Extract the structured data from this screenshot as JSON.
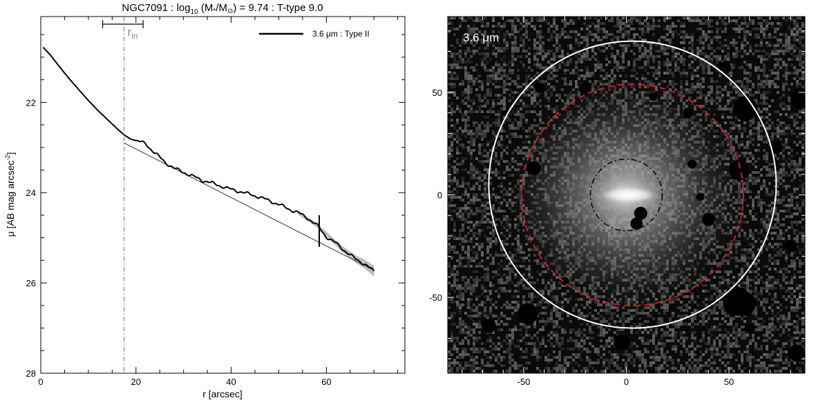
{
  "chart_data": [
    {
      "type": "line",
      "title": {
        "prefix": "NGC7091 : log",
        "log_base": "10",
        "ratio_open": " (M",
        "star_sub": "*",
        "ratio_mid": "/M",
        "sun_sub": "⊙",
        "suffix": ") = 9.74 : T-type 9.0"
      },
      "xlabel": "r [arcsec]",
      "ylabel": {
        "main": "μ [AB mag arcsec",
        "sup": "-2",
        "close": "]"
      },
      "xlim": [
        0,
        76.5
      ],
      "ylim": [
        28,
        20.1
      ],
      "y_inverted": true,
      "xticks": [
        0,
        20,
        40,
        60
      ],
      "xtick_labels": [
        "0",
        "20",
        "40",
        "60"
      ],
      "yticks": [
        22,
        24,
        26,
        28
      ],
      "ytick_labels": [
        "22",
        "24",
        "26",
        "28"
      ],
      "grid": false,
      "legend_position": "top-right",
      "series": [
        {
          "name": "3.6 μm : Type II",
          "color": "#000000",
          "x": [
            0.5,
            2,
            4,
            6,
            8,
            10,
            12,
            14,
            16,
            17.5,
            19,
            20.5,
            22,
            24,
            26,
            28,
            30,
            32,
            34,
            36,
            38,
            40,
            42,
            44,
            46,
            48,
            50,
            52,
            54,
            56,
            58,
            60,
            62,
            64,
            66,
            68,
            70
          ],
          "y": [
            20.78,
            20.95,
            21.22,
            21.48,
            21.72,
            21.96,
            22.18,
            22.38,
            22.58,
            22.72,
            22.82,
            22.86,
            22.92,
            23.12,
            23.32,
            23.46,
            23.55,
            23.64,
            23.73,
            23.79,
            23.86,
            23.93,
            23.98,
            24.04,
            24.1,
            24.18,
            24.26,
            24.36,
            24.44,
            24.56,
            24.72,
            24.98,
            25.12,
            25.3,
            25.46,
            25.58,
            25.74
          ]
        }
      ],
      "uncertainty_band": {
        "x": [
          54,
          58,
          62,
          64,
          66,
          68,
          70
        ],
        "half_width": [
          0.04,
          0.05,
          0.06,
          0.07,
          0.08,
          0.1,
          0.12
        ]
      },
      "fit_line": {
        "x": [
          17.5,
          70
        ],
        "y": [
          22.9,
          25.72
        ],
        "color": "#333333"
      },
      "annotations": {
        "r_in_label": "r",
        "r_in_sub": "in",
        "r_in_value": 17.5,
        "r_in_range": [
          13,
          21.5
        ],
        "r_in_color": "#888888",
        "break_radius": 58.5,
        "break_y_range": [
          24.5,
          25.2
        ]
      }
    },
    {
      "type": "heatmap",
      "label": "3.6 μm",
      "xlim": [
        -87,
        87
      ],
      "ylim": [
        -87,
        87
      ],
      "xticks": [
        -50,
        0,
        50
      ],
      "xtick_labels": [
        "-50",
        "0",
        "50"
      ],
      "yticks": [
        50,
        0,
        -50
      ],
      "ytick_labels": [
        "50",
        "0",
        "-50"
      ],
      "grid": false,
      "galaxy_center": [
        0,
        0
      ],
      "circles": [
        {
          "name": "outer-aperture",
          "center": [
            3,
            5
          ],
          "radius": 70,
          "color": "#ffffff",
          "style": "solid"
        },
        {
          "name": "disk-aperture",
          "center": [
            3,
            0
          ],
          "radius": 54,
          "color": "#d62020",
          "style": "dashed"
        },
        {
          "name": "inner-aperture",
          "center": [
            0,
            0
          ],
          "radius": 17.5,
          "color": "#000000",
          "style": "dash-dot"
        }
      ],
      "masks": [
        [
          -45,
          13,
          3.5
        ],
        [
          7,
          -9,
          3.2
        ],
        [
          5,
          -14,
          3
        ],
        [
          30,
          40,
          2.5
        ],
        [
          13,
          48,
          2
        ],
        [
          36,
          -1,
          2
        ],
        [
          40,
          -12,
          3.2
        ],
        [
          -42,
          52,
          2.5
        ],
        [
          32,
          15,
          2.2
        ],
        [
          -48,
          -58,
          5
        ],
        [
          54,
          -52,
          7
        ],
        [
          57,
          -53,
          6
        ],
        [
          -67,
          -64,
          3.5
        ],
        [
          -2,
          -72,
          4
        ],
        [
          58,
          42,
          6
        ],
        [
          55,
          12,
          5
        ],
        [
          73,
          23,
          3
        ],
        [
          80,
          -25,
          3
        ],
        [
          85,
          47,
          5
        ],
        [
          -20,
          52,
          3
        ],
        [
          48,
          62,
          3
        ],
        [
          -30,
          -42,
          2
        ],
        [
          83,
          -77,
          4
        ],
        [
          60,
          -65,
          2.5
        ]
      ],
      "colors": {
        "background": "#080808",
        "galaxy_core": "#ffffff",
        "galaxy_halo": "#9a9a9a",
        "mask": "#000000"
      }
    }
  ]
}
